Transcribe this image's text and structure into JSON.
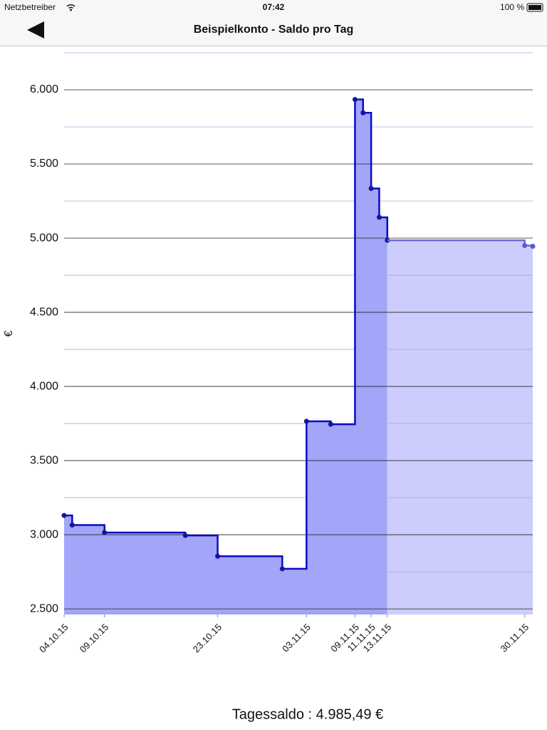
{
  "status_bar": {
    "carrier": "Netzbetreiber",
    "time": "07:42",
    "battery": "100 %"
  },
  "nav_bar": {
    "title": "Beispielkonto - Saldo pro Tag"
  },
  "chart_data": {
    "type": "step-area",
    "y_label": "€",
    "series": [
      {
        "color": "#0a0ac8",
        "fill": "#a2a5f8",
        "marker_color": "#16169a",
        "x": [
          "04.10.15",
          "05.10.15",
          "09.10.15",
          "19.10.15",
          "23.10.15",
          "31.10.15",
          "03.11.15",
          "06.11.15",
          "09.11.15",
          "10.11.15",
          "11.11.15",
          "12.11.15",
          "13.11.15"
        ],
        "values": [
          3130,
          3065,
          3015,
          2995,
          2855,
          2770,
          3765,
          3745,
          5935,
          5845,
          5335,
          5140,
          4985
        ]
      },
      {
        "color": "#6a6ad8",
        "fill": "#cccdfc",
        "marker_color": "#5a5ac8",
        "x": [
          "30.11.15",
          "01.12.15"
        ],
        "values": [
          4950,
          4945
        ]
      }
    ],
    "xlim": [
      "04.10.15",
      "01.12.15"
    ],
    "xticks": [
      "04.10.15",
      "09.10.15",
      "23.10.15",
      "03.11.15",
      "09.11.15",
      "11.11.15",
      "13.11.15",
      "30.11.15"
    ],
    "ylim": [
      2462,
      6250
    ],
    "yticks": [
      {
        "value": 2500,
        "label": "2.500"
      },
      {
        "value": 3000,
        "label": "3.000"
      },
      {
        "value": 3500,
        "label": "3.500"
      },
      {
        "value": 4000,
        "label": "4.000"
      },
      {
        "value": 4500,
        "label": "4.500"
      },
      {
        "value": 5000,
        "label": "5.000"
      },
      {
        "value": 5500,
        "label": "5.500"
      },
      {
        "value": 6000,
        "label": "6.000"
      }
    ],
    "minor_yticks": [
      2750,
      3250,
      3750,
      4250,
      4750,
      5250,
      5750,
      6250
    ],
    "grid": true
  },
  "footer": {
    "text": "Tagessaldo : 4.985,49 €"
  }
}
